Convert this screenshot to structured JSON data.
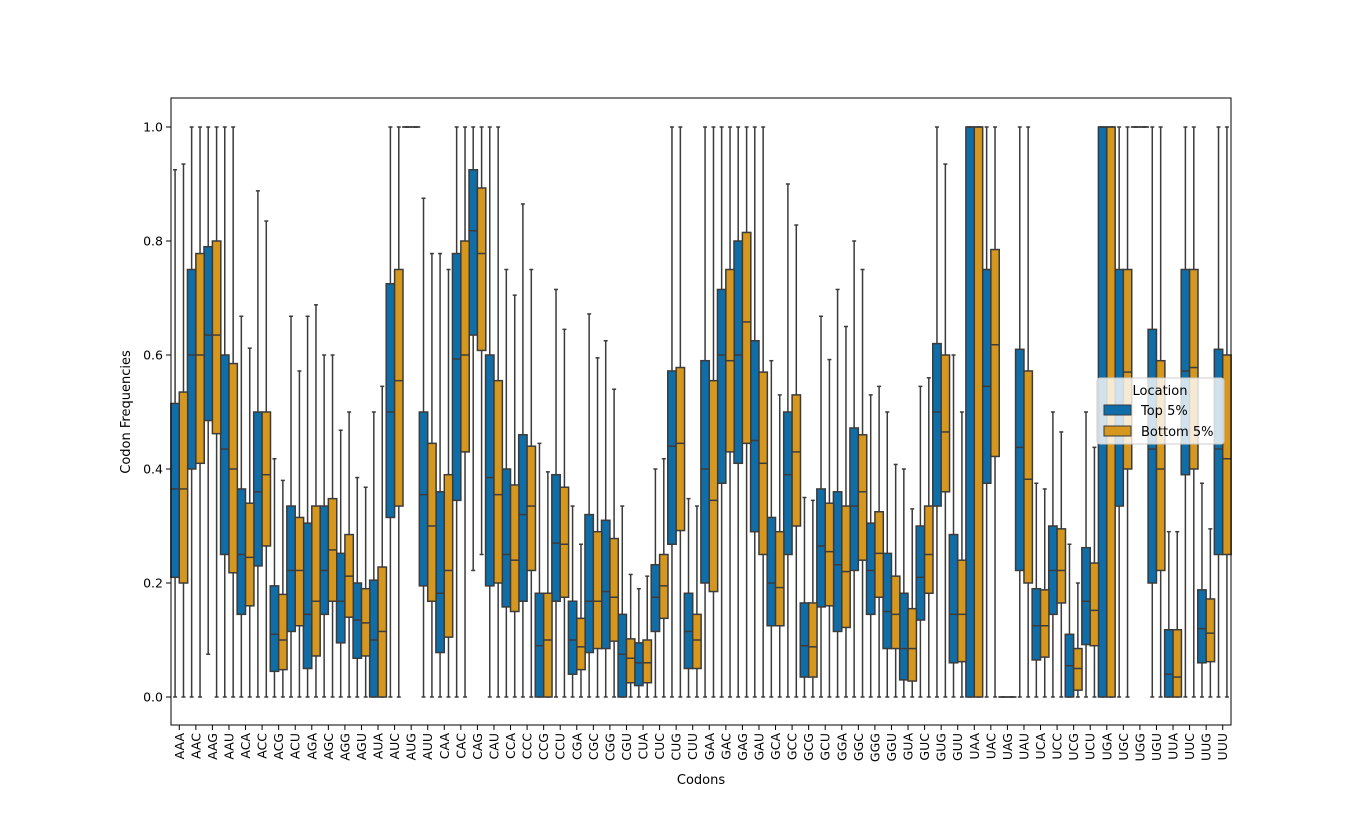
{
  "chart_data": {
    "type": "box",
    "xlabel": "Codons",
    "ylabel": "Codon Frequencies",
    "ylim": [
      -0.05,
      1.05
    ],
    "yticks": [
      "0.0",
      "0.2",
      "0.4",
      "0.6",
      "0.8",
      "1.0"
    ],
    "legend": {
      "title": "Location",
      "placement": "right"
    },
    "colors": {
      "Top 5%": "#0f6ea8",
      "Bottom 5%": "#d6971f",
      "whisker": "#3b3b3b"
    },
    "categories": [
      "AAA",
      "AAC",
      "AAG",
      "AAU",
      "ACA",
      "ACC",
      "ACG",
      "ACU",
      "AGA",
      "AGC",
      "AGG",
      "AGU",
      "AUA",
      "AUC",
      "AUG",
      "AUU",
      "CAA",
      "CAC",
      "CAG",
      "CAU",
      "CCA",
      "CCC",
      "CCG",
      "CCU",
      "CGA",
      "CGC",
      "CGG",
      "CGU",
      "CUA",
      "CUC",
      "CUG",
      "CUU",
      "GAA",
      "GAC",
      "GAG",
      "GAU",
      "GCA",
      "GCC",
      "GCG",
      "GCU",
      "GGA",
      "GGC",
      "GGG",
      "GGU",
      "GUA",
      "GUC",
      "GUG",
      "GUU",
      "UAA",
      "UAC",
      "UAG",
      "UAU",
      "UCA",
      "UCC",
      "UCG",
      "UCU",
      "UGA",
      "UGC",
      "UGG",
      "UGU",
      "UUA",
      "UUC",
      "UUG",
      "UUU"
    ],
    "series": [
      {
        "name": "Top 5%",
        "boxes": [
          [
            0,
            0.21,
            0.365,
            0.515,
            0.925
          ],
          [
            0,
            0.4,
            0.6,
            0.75,
            1.0
          ],
          [
            0.075,
            0.485,
            0.635,
            0.79,
            1.0
          ],
          [
            0,
            0.25,
            0.435,
            0.6,
            1.0
          ],
          [
            0,
            0.145,
            0.25,
            0.365,
            0.668
          ],
          [
            0,
            0.23,
            0.36,
            0.5,
            0.888
          ],
          [
            0,
            0.045,
            0.11,
            0.195,
            0.418
          ],
          [
            0,
            0.115,
            0.222,
            0.335,
            0.668
          ],
          [
            0,
            0.05,
            0.145,
            0.305,
            0.668
          ],
          [
            0,
            0.145,
            0.222,
            0.335,
            0.6
          ],
          [
            0,
            0.095,
            0.168,
            0.252,
            0.468
          ],
          [
            0,
            0.068,
            0.135,
            0.2,
            0.385
          ],
          [
            0,
            0,
            0.1,
            0.205,
            0.5
          ],
          [
            0,
            0.315,
            0.5,
            0.725,
            1.0
          ],
          [
            1.0,
            1.0,
            1.0,
            1.0,
            1.0
          ],
          [
            0,
            0.195,
            0.355,
            0.5,
            0.875
          ],
          [
            0,
            0.078,
            0.182,
            0.36,
            0.778
          ],
          [
            0,
            0.345,
            0.593,
            0.778,
            1.0
          ],
          [
            0.222,
            0.635,
            0.818,
            0.925,
            1.0
          ],
          [
            0,
            0.195,
            0.385,
            0.6,
            1.0
          ],
          [
            0,
            0.158,
            0.25,
            0.4,
            0.75
          ],
          [
            0,
            0.168,
            0.32,
            0.46,
            0.865
          ],
          [
            0,
            0,
            0.09,
            0.182,
            0.445
          ],
          [
            0,
            0.168,
            0.27,
            0.39,
            0.715
          ],
          [
            0,
            0.04,
            0.1,
            0.168,
            0.335
          ],
          [
            0,
            0.078,
            0.168,
            0.32,
            0.672
          ],
          [
            0,
            0.085,
            0.185,
            0.31,
            0.625
          ],
          [
            0,
            0,
            0.075,
            0.145,
            0.335
          ],
          [
            0,
            0.02,
            0.06,
            0.095,
            0.19
          ],
          [
            0,
            0.115,
            0.175,
            0.232,
            0.4
          ],
          [
            0,
            0.268,
            0.44,
            0.572,
            1.0
          ],
          [
            0,
            0.05,
            0.115,
            0.182,
            0.348
          ],
          [
            0,
            0.2,
            0.4,
            0.59,
            1.0
          ],
          [
            0,
            0.375,
            0.6,
            0.715,
            1.0
          ],
          [
            0,
            0.41,
            0.6,
            0.8,
            1.0
          ],
          [
            0,
            0.29,
            0.45,
            0.625,
            1.0
          ],
          [
            0,
            0.125,
            0.2,
            0.315,
            0.59
          ],
          [
            0,
            0.25,
            0.39,
            0.5,
            0.9
          ],
          [
            0,
            0.035,
            0.09,
            0.165,
            0.35
          ],
          [
            0,
            0.158,
            0.265,
            0.365,
            0.668
          ],
          [
            0,
            0.115,
            0.232,
            0.36,
            0.715
          ],
          [
            0,
            0.222,
            0.335,
            0.472,
            0.8
          ],
          [
            0,
            0.145,
            0.222,
            0.305,
            0.53
          ],
          [
            0,
            0.085,
            0.15,
            0.252,
            0.5
          ],
          [
            0,
            0.03,
            0.085,
            0.182,
            0.4
          ],
          [
            0,
            0.135,
            0.21,
            0.3,
            0.545
          ],
          [
            0,
            0.335,
            0.5,
            0.62,
            1.0
          ],
          [
            0,
            0.06,
            0.145,
            0.285,
            0.6
          ],
          [
            0,
            0,
            1.0,
            1.0,
            1.0
          ],
          [
            0,
            0.375,
            0.545,
            0.75,
            1.0
          ],
          [
            0,
            0,
            0,
            0,
            0
          ],
          [
            0,
            0.222,
            0.438,
            0.61,
            1.0
          ],
          [
            0,
            0.065,
            0.125,
            0.19,
            0.375
          ],
          [
            0,
            0.145,
            0.222,
            0.3,
            0.5
          ],
          [
            0,
            0,
            0.055,
            0.11,
            0.268
          ],
          [
            0,
            0.092,
            0.168,
            0.262,
            0.5
          ],
          [
            0,
            0,
            1.0,
            1.0,
            1.0
          ],
          [
            0,
            0.335,
            0.5,
            0.75,
            1.0
          ],
          [
            1.0,
            1.0,
            1.0,
            1.0,
            1.0
          ],
          [
            0,
            0.2,
            0.435,
            0.645,
            1.0
          ],
          [
            0,
            0,
            0.04,
            0.118,
            0.29
          ],
          [
            0,
            0.39,
            0.572,
            0.75,
            1.0
          ],
          [
            0,
            0.06,
            0.12,
            0.188,
            0.375
          ],
          [
            0,
            0.25,
            0.435,
            0.61,
            1.0
          ]
        ]
      },
      {
        "name": "Bottom 5%",
        "boxes": [
          [
            0,
            0.2,
            0.365,
            0.535,
            0.935
          ],
          [
            0,
            0.41,
            0.6,
            0.778,
            1.0
          ],
          [
            0,
            0.462,
            0.635,
            0.8,
            1.0
          ],
          [
            0,
            0.218,
            0.4,
            0.585,
            1.0
          ],
          [
            0,
            0.16,
            0.245,
            0.34,
            0.612
          ],
          [
            0,
            0.265,
            0.39,
            0.5,
            0.835
          ],
          [
            0,
            0.048,
            0.1,
            0.18,
            0.38
          ],
          [
            0,
            0.125,
            0.222,
            0.315,
            0.572
          ],
          [
            0,
            0.072,
            0.168,
            0.335,
            0.688
          ],
          [
            0,
            0.168,
            0.258,
            0.348,
            0.6
          ],
          [
            0,
            0.14,
            0.212,
            0.285,
            0.5
          ],
          [
            0,
            0.072,
            0.13,
            0.19,
            0.368
          ],
          [
            0,
            0,
            0.115,
            0.228,
            0.545
          ],
          [
            0,
            0.335,
            0.555,
            0.75,
            1.0
          ],
          [
            1.0,
            1.0,
            1.0,
            1.0,
            1.0
          ],
          [
            0,
            0.168,
            0.3,
            0.445,
            0.778
          ],
          [
            0,
            0.105,
            0.222,
            0.39,
            0.75
          ],
          [
            0,
            0.43,
            0.6,
            0.8,
            1.0
          ],
          [
            0.25,
            0.608,
            0.778,
            0.893,
            1.0
          ],
          [
            0,
            0.2,
            0.355,
            0.555,
            1.0
          ],
          [
            0,
            0.15,
            0.24,
            0.372,
            0.705
          ],
          [
            0,
            0.222,
            0.335,
            0.44,
            0.75
          ],
          [
            0,
            0,
            0.1,
            0.182,
            0.395
          ],
          [
            0,
            0.175,
            0.268,
            0.368,
            0.645
          ],
          [
            0,
            0.048,
            0.088,
            0.138,
            0.268
          ],
          [
            0,
            0.085,
            0.168,
            0.29,
            0.595
          ],
          [
            0,
            0.098,
            0.175,
            0.278,
            0.54
          ],
          [
            0,
            0.025,
            0.068,
            0.102,
            0.215
          ],
          [
            0,
            0.025,
            0.06,
            0.1,
            0.212
          ],
          [
            0,
            0.138,
            0.195,
            0.25,
            0.418
          ],
          [
            0,
            0.292,
            0.445,
            0.578,
            1.0
          ],
          [
            0,
            0.05,
            0.1,
            0.145,
            0.335
          ],
          [
            0,
            0.185,
            0.345,
            0.555,
            1.0
          ],
          [
            0,
            0.43,
            0.59,
            0.75,
            1.0
          ],
          [
            0,
            0.445,
            0.658,
            0.815,
            1.0
          ],
          [
            0,
            0.25,
            0.41,
            0.57,
            1.0
          ],
          [
            0,
            0.125,
            0.192,
            0.29,
            0.53
          ],
          [
            0,
            0.3,
            0.43,
            0.53,
            0.828
          ],
          [
            0,
            0.035,
            0.088,
            0.165,
            0.345
          ],
          [
            0,
            0.16,
            0.255,
            0.34,
            0.592
          ],
          [
            0,
            0.122,
            0.22,
            0.335,
            0.65
          ],
          [
            0,
            0.24,
            0.36,
            0.46,
            0.75
          ],
          [
            0,
            0.175,
            0.252,
            0.325,
            0.545
          ],
          [
            0,
            0.085,
            0.145,
            0.212,
            0.408
          ],
          [
            0,
            0.028,
            0.085,
            0.155,
            0.33
          ],
          [
            0,
            0.182,
            0.25,
            0.335,
            0.56
          ],
          [
            0,
            0.36,
            0.465,
            0.6,
            0.935
          ],
          [
            0,
            0.062,
            0.145,
            0.24,
            0.5
          ],
          [
            0,
            0,
            1.0,
            1.0,
            1.0
          ],
          [
            0,
            0.422,
            0.618,
            0.785,
            1.0
          ],
          [
            0,
            0,
            0,
            0,
            0
          ],
          [
            0,
            0.2,
            0.382,
            0.572,
            1.0
          ],
          [
            0,
            0.07,
            0.125,
            0.188,
            0.365
          ],
          [
            0,
            0.165,
            0.222,
            0.295,
            0.465
          ],
          [
            0,
            0.012,
            0.05,
            0.085,
            0.2
          ],
          [
            0,
            0.09,
            0.152,
            0.235,
            0.438
          ],
          [
            0,
            0,
            1.0,
            1.0,
            1.0
          ],
          [
            0,
            0.4,
            0.57,
            0.75,
            1.0
          ],
          [
            1.0,
            1.0,
            1.0,
            1.0,
            1.0
          ],
          [
            0,
            0.222,
            0.4,
            0.59,
            1.0
          ],
          [
            0,
            0,
            0.035,
            0.118,
            0.29
          ],
          [
            0,
            0.4,
            0.578,
            0.75,
            1.0
          ],
          [
            0,
            0.062,
            0.112,
            0.172,
            0.295
          ],
          [
            0,
            0.25,
            0.418,
            0.6,
            1.0
          ]
        ]
      }
    ]
  }
}
